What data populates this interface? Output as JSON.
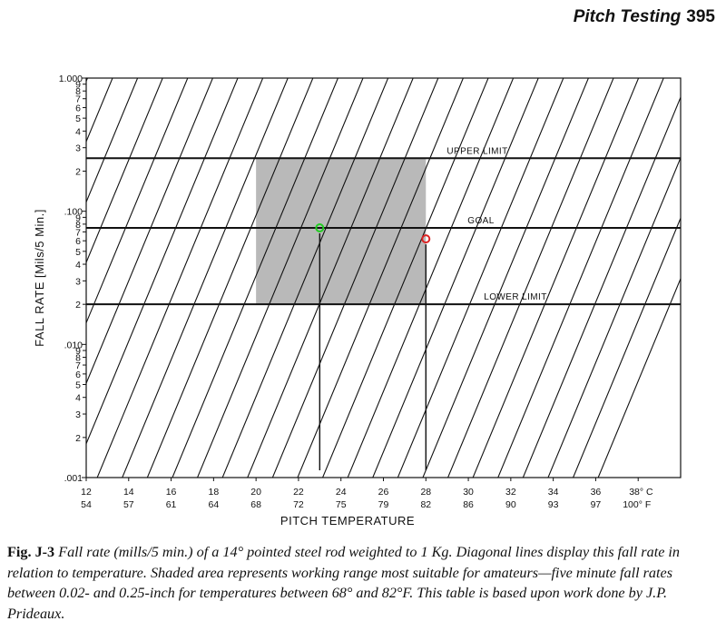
{
  "header": {
    "title": "Pitch Testing",
    "page_number": "395"
  },
  "chart_data": {
    "type": "line",
    "xlabel": "PITCH TEMPERATURE",
    "ylabel": "FALL RATE [Mils/5 Min.]",
    "xlim": [
      12,
      40
    ],
    "ylim": [
      0.001,
      1.0
    ],
    "y_scale": "log",
    "x_ticks_celsius": [
      "12",
      "14",
      "16",
      "18",
      "20",
      "22",
      "24",
      "26",
      "28",
      "30",
      "32",
      "34",
      "36",
      "38° C"
    ],
    "x_ticks_fahrenheit": [
      "54",
      "57",
      "61",
      "64",
      "68",
      "72",
      "75",
      "79",
      "82",
      "86",
      "90",
      "93",
      "97",
      "100° F"
    ],
    "y_decade_labels": [
      "1.000",
      ".100",
      ".010",
      ".001"
    ],
    "y_minor_labels": [
      "9",
      "8",
      "7",
      "6",
      "5",
      "4",
      "3",
      "2"
    ],
    "reference_lines": [
      {
        "label": "UPPER LIMIT",
        "y": 0.25
      },
      {
        "label": "GOAL",
        "y": 0.075
      },
      {
        "label": "LOWER LIMIT",
        "y": 0.02
      }
    ],
    "shaded_region": {
      "x": [
        20,
        28
      ],
      "y": [
        0.02,
        0.25
      ]
    },
    "markers": [
      {
        "x": 23,
        "y": 0.075,
        "color": "#22cc22"
      },
      {
        "x": 28,
        "y": 0.062,
        "color": "#dd2222"
      }
    ],
    "colors": {
      "shade": "#b9b9b9",
      "ink": "#111111"
    },
    "grid": false
  },
  "caption": {
    "label": "Fig. J-3",
    "text": "Fall rate (mills/5 min.) of a 14° pointed steel rod weighted to 1 Kg. Diagonal lines display this fall rate in relation to temperature. Shaded area represents working range most suitable for amateurs—five minute fall rates between 0.02- and 0.25-inch for temperatures between 68° and 82°F. This table is based upon work done by J.P. Prideaux."
  }
}
